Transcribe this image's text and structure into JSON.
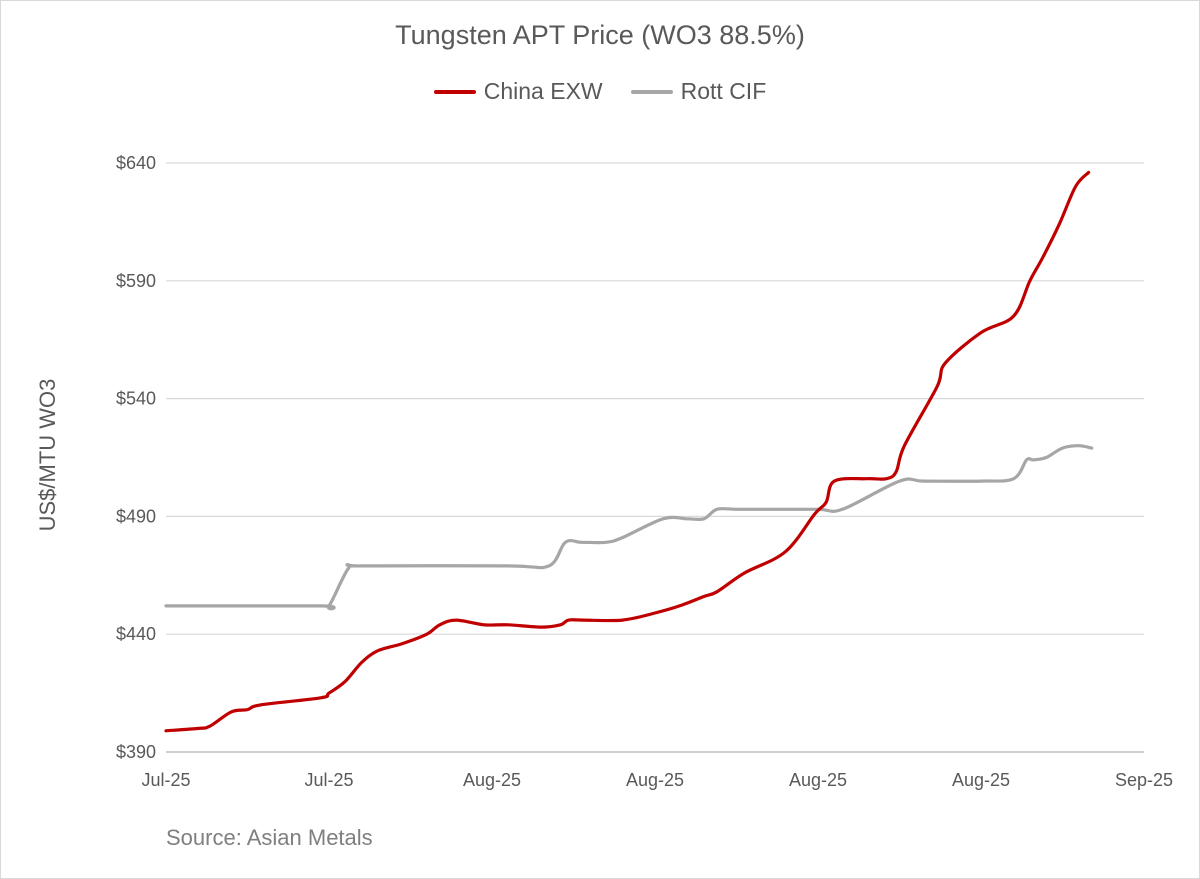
{
  "chart_data": {
    "type": "line",
    "title": "Tungsten APT Price (WO3 88.5%)",
    "ylabel": "US$/MTU WO3",
    "xlabel": "",
    "ylim": [
      390,
      640
    ],
    "yticks": [
      390,
      440,
      490,
      540,
      590,
      640
    ],
    "ytick_labels": [
      "$390",
      "$440",
      "$490",
      "$540",
      "$590",
      "$640"
    ],
    "xlim": [
      0,
      6
    ],
    "xtick_labels": [
      "Jul-25",
      "Jul-25",
      "Aug-25",
      "Aug-25",
      "Aug-25",
      "Aug-25",
      "Sep-25"
    ],
    "grid": "horizontal",
    "legend_position": "top",
    "source": "Source: Asian Metals",
    "series": [
      {
        "name": "China EXW",
        "color": "#c00000",
        "x": [
          0,
          0.2,
          0.27,
          0.4,
          0.5,
          0.58,
          0.95,
          1.0,
          1.1,
          1.2,
          1.3,
          1.45,
          1.6,
          1.68,
          1.78,
          1.95,
          2.1,
          2.3,
          2.42,
          2.47,
          2.56,
          2.8,
          3.0,
          3.15,
          3.3,
          3.38,
          3.55,
          3.8,
          3.98,
          4.05,
          4.1,
          4.3,
          4.42,
          4.48,
          4.53,
          4.73,
          4.78,
          5.0,
          5.2,
          5.3,
          5.38,
          5.48,
          5.58,
          5.66
        ],
        "values": [
          399,
          400,
          401,
          407,
          408,
          410,
          413,
          415,
          420,
          428,
          433,
          436,
          440,
          444,
          446,
          444,
          444,
          443,
          444,
          446,
          446,
          446,
          449,
          452,
          456,
          458,
          466,
          475,
          491,
          496,
          505,
          506,
          506,
          509,
          520,
          545,
          555,
          568,
          575,
          590,
          600,
          614,
          630,
          636
        ]
      },
      {
        "name": "Rott CIF",
        "color": "#a6a6a6",
        "x": [
          0,
          0.95,
          1.0,
          1.12,
          1.2,
          2.1,
          2.35,
          2.45,
          2.55,
          2.7,
          2.8,
          3.05,
          3.2,
          3.3,
          3.38,
          3.5,
          3.65,
          4.0,
          4.15,
          4.5,
          4.65,
          5.0,
          5.2,
          5.28,
          5.32,
          5.4,
          5.5,
          5.6,
          5.68
        ],
        "values": [
          452,
          452,
          452,
          468,
          469,
          469,
          469,
          479,
          479,
          479,
          481,
          489,
          489,
          489,
          493,
          493,
          493,
          493,
          493,
          505,
          505,
          505,
          506,
          514,
          514,
          515,
          519,
          520,
          519
        ]
      }
    ]
  }
}
